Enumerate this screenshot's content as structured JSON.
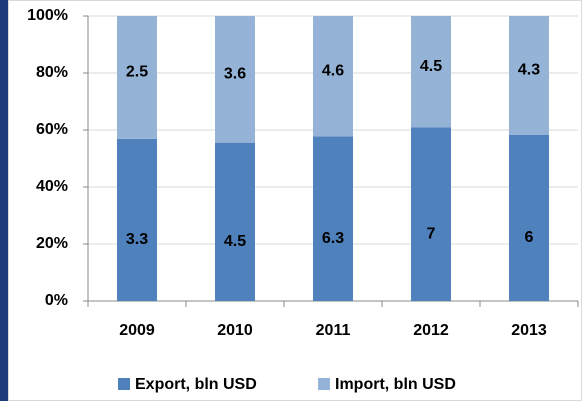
{
  "chart_data": {
    "type": "bar100",
    "categories": [
      "2009",
      "2010",
      "2011",
      "2012",
      "2013"
    ],
    "series": [
      {
        "name": "Export, bln USD",
        "color": "#4f81bd",
        "values": [
          3.3,
          4.5,
          6.3,
          7,
          6
        ]
      },
      {
        "name": "Import, bln USD",
        "color": "#95b3d7",
        "values": [
          2.5,
          3.6,
          4.6,
          4.5,
          4.3
        ]
      }
    ],
    "ylim": [
      0,
      100
    ],
    "yticks": [
      {
        "value": 0,
        "label": "0%"
      },
      {
        "value": 20,
        "label": "20%"
      },
      {
        "value": 40,
        "label": "40%"
      },
      {
        "value": 60,
        "label": "60%"
      },
      {
        "value": 80,
        "label": "80%"
      },
      {
        "value": 100,
        "label": "100%"
      }
    ],
    "grid": true,
    "legend": "bottom"
  }
}
